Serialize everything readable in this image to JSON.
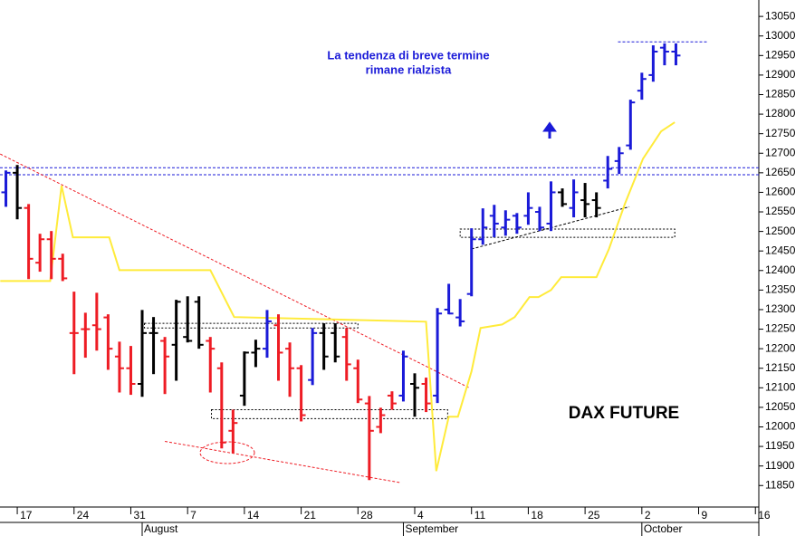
{
  "chart_data": {
    "type": "ohlc",
    "title": "DAX FUTURE",
    "annotations": [
      "La tendenza di breve termine",
      "rimane rialzista"
    ],
    "x": [
      -1,
      0,
      1,
      2,
      3,
      4,
      5,
      6,
      7,
      8,
      9,
      10,
      11,
      12,
      13,
      14,
      15,
      16,
      17,
      18,
      19,
      20,
      21,
      22,
      23,
      24,
      25,
      26,
      27,
      28,
      29,
      30,
      31,
      32,
      33,
      34,
      35,
      36,
      37,
      38,
      39,
      40,
      41,
      42,
      43,
      44,
      45,
      46,
      47,
      48,
      49,
      50,
      51,
      52,
      53,
      54,
      55,
      56,
      57,
      58
    ],
    "open": [
      12600,
      12650,
      12560,
      12420,
      12480,
      12430,
      12240,
      12250,
      12260,
      12280,
      12180,
      12150,
      12110,
      12240,
      12220,
      12210,
      12230,
      12320,
      12220,
      12150,
      11990,
      12080,
      12190,
      12200,
      12260,
      12200,
      12150,
      12120,
      12240,
      12240,
      12230,
      12150,
      12060,
      12000,
      12080,
      12080,
      12110,
      12110,
      12080,
      12300,
      12280,
      12340,
      12480,
      12540,
      12510,
      12540,
      12540,
      12550,
      12520,
      12600,
      12560,
      12580,
      12580,
      12630,
      12680,
      12720,
      12860,
      12900,
      12970,
      12960
    ],
    "high": [
      12656,
      12670,
      12570,
      12494,
      12501,
      12443,
      12346,
      12292,
      12343,
      12288,
      12218,
      12207,
      12299,
      12281,
      12230,
      12325,
      12334,
      12334,
      12230,
      12165,
      12044,
      12193,
      12223,
      12299,
      12288,
      12216,
      12158,
      12253,
      12265,
      12265,
      12253,
      12172,
      12079,
      12049,
      12091,
      12195,
      12137,
      12126,
      12304,
      12366,
      12327,
      12508,
      12559,
      12568,
      12554,
      12547,
      12600,
      12563,
      12628,
      12610,
      12633,
      12624,
      12600,
      12693,
      12716,
      12837,
      12906,
      12976,
      12981,
      12981
    ],
    "low": [
      12563,
      12531,
      12378,
      12397,
      12378,
      12373,
      12135,
      12177,
      12195,
      12146,
      12088,
      12082,
      12077,
      12135,
      12084,
      12118,
      12216,
      12200,
      12088,
      11945,
      11933,
      12054,
      12153,
      12177,
      12118,
      12077,
      12014,
      12107,
      12146,
      12165,
      12118,
      12061,
      11864,
      11984,
      12044,
      12065,
      12026,
      12038,
      12061,
      12288,
      12257,
      12334,
      12466,
      12485,
      12489,
      12494,
      12517,
      12501,
      12501,
      12563,
      12536,
      12536,
      12536,
      12610,
      12647,
      12709,
      12837,
      12883,
      12925,
      12925
    ],
    "close": [
      12650,
      12560,
      12430,
      12480,
      12430,
      12380,
      12240,
      12250,
      12250,
      12200,
      12150,
      12110,
      12240,
      12240,
      12180,
      12320,
      12220,
      12210,
      12200,
      11960,
      12010,
      12190,
      12200,
      12270,
      12190,
      12150,
      12030,
      12240,
      12180,
      12180,
      12160,
      12070,
      11990,
      12030,
      12060,
      12180,
      12100,
      12060,
      12290,
      12290,
      12270,
      12480,
      12510,
      12520,
      12530,
      12510,
      12560,
      12510,
      12600,
      12570,
      12600,
      12570,
      12560,
      12660,
      12700,
      12830,
      12890,
      12960,
      12960,
      12950
    ],
    "bar_colors": [
      "#1a1ad8",
      "#000000",
      "#ee1c24",
      "#ee1c24",
      "#ee1c24",
      "#ee1c24",
      "#ee1c24",
      "#ee1c24",
      "#ee1c24",
      "#ee1c24",
      "#ee1c24",
      "#ee1c24",
      "#000000",
      "#000000",
      "#ee1c24",
      "#000000",
      "#000000",
      "#000000",
      "#ee1c24",
      "#ee1c24",
      "#ee1c24",
      "#000000",
      "#000000",
      "#1a1ad8",
      "#ee1c24",
      "#ee1c24",
      "#ee1c24",
      "#1a1ad8",
      "#000000",
      "#000000",
      "#ee1c24",
      "#ee1c24",
      "#ee1c24",
      "#ee1c24",
      "#ee1c24",
      "#1a1ad8",
      "#000000",
      "#ee1c24",
      "#1a1ad8",
      "#1a1ad8",
      "#1a1ad8",
      "#1a1ad8",
      "#1a1ad8",
      "#1a1ad8",
      "#1a1ad8",
      "#1a1ad8",
      "#1a1ad8",
      "#1a1ad8",
      "#1a1ad8",
      "#000000",
      "#1a1ad8",
      "#000000",
      "#000000",
      "#1a1ad8",
      "#1a1ad8",
      "#1a1ad8",
      "#1a1ad8",
      "#1a1ad8",
      "#1a1ad8",
      "#1a1ad8"
    ],
    "line": {
      "color": "#ffeb3b",
      "x": [
        -1.5,
        2.9,
        3.9,
        4.9,
        8.1,
        9.0,
        17.0,
        19.1,
        36.0,
        36.9,
        38.0,
        38.8,
        40.0,
        40.8,
        42.7,
        43.8,
        45.1,
        45.9,
        47.0,
        47.9,
        51.0,
        52.1,
        53.5,
        55.1,
        56.7,
        57.9
      ],
      "values": [
        12373,
        12373,
        12617,
        12485,
        12485,
        12401,
        12401,
        12281,
        12269,
        11887,
        12026,
        12026,
        12142,
        12253,
        12262,
        12281,
        12332,
        12332,
        12350,
        12383,
        12383,
        12455,
        12570,
        12686,
        12756,
        12779
      ]
    },
    "hlines": [
      {
        "value": 12663,
        "color": "#1a1ad8"
      },
      {
        "value": 12645,
        "color": "#1a1ad8"
      }
    ],
    "segments": [
      {
        "x": [
          -1.5,
          39.8
        ],
        "values": [
          12698,
          12100
        ],
        "color": "#ee1c24"
      },
      {
        "x": [
          13.0,
          33.8
        ],
        "values": [
          11963,
          11857
        ],
        "color": "#ee1c24"
      },
      {
        "x": [
          40.0,
          53.9
        ],
        "values": [
          12455,
          12563
        ],
        "color": "#000000"
      },
      {
        "x": [
          52.9,
          60.8
        ],
        "values": [
          12985,
          12985
        ],
        "color": "#1a1ad8"
      }
    ],
    "zones": [
      {
        "x": [
          39.0,
          57.9
        ],
        "values": [
          12485,
          12506
        ]
      },
      {
        "x": [
          11.2,
          30.0
        ],
        "values": [
          12253,
          12265
        ]
      },
      {
        "x": [
          17.1,
          37.9
        ],
        "values": [
          12021,
          12044
        ]
      }
    ],
    "xlim": [
      -1.52,
      65.3
    ],
    "ylim": [
      11795,
      13092
    ],
    "xticks": [
      {
        "value": 0,
        "label": "17"
      },
      {
        "value": 5,
        "label": "24"
      },
      {
        "value": 10,
        "label": "31"
      },
      {
        "value": 15,
        "label": "7"
      },
      {
        "value": 20,
        "label": "14"
      },
      {
        "value": 25,
        "label": "21"
      },
      {
        "value": 30,
        "label": "28"
      },
      {
        "value": 35,
        "label": "4"
      },
      {
        "value": 40,
        "label": "11"
      },
      {
        "value": 45,
        "label": "18"
      },
      {
        "value": 50,
        "label": "25"
      },
      {
        "value": 55,
        "label": "2"
      },
      {
        "value": 60,
        "label": "9"
      },
      {
        "value": 65,
        "label": "16"
      }
    ],
    "month_ticks": [
      {
        "value": 11,
        "label": "August"
      },
      {
        "value": 34,
        "label": "September"
      },
      {
        "value": 55,
        "label": "October"
      }
    ],
    "yticks": [
      11850,
      11900,
      11950,
      12000,
      12050,
      12100,
      12150,
      12200,
      12250,
      12300,
      12350,
      12400,
      12450,
      12500,
      12550,
      12600,
      12650,
      12700,
      12750,
      12800,
      12850,
      12900,
      12950,
      13000,
      13050
    ]
  }
}
